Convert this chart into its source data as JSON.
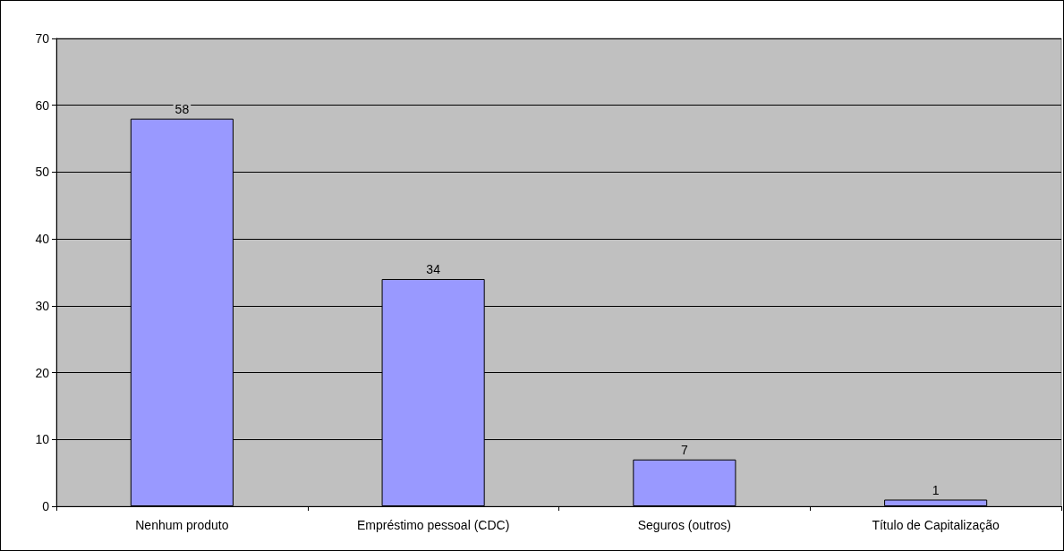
{
  "chart_data": {
    "type": "bar",
    "categories": [
      "Nenhum produto",
      "Empréstimo pessoal (CDC)",
      "Seguros (outros)",
      "Título de Capitalização"
    ],
    "values": [
      58,
      34,
      7,
      1
    ],
    "color": "#9999ff",
    "ylim": [
      0,
      70
    ],
    "yticks": [
      0,
      10,
      20,
      30,
      40,
      50,
      60,
      70
    ],
    "grid": "y",
    "data_labels": true
  }
}
